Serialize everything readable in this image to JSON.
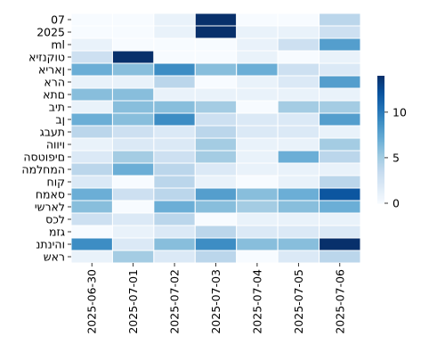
{
  "chart_data": {
    "type": "heatmap",
    "title": "",
    "xlabel": "",
    "ylabel": "",
    "x": [
      "2025-06-30",
      "2025-07-01",
      "2025-07-02",
      "2025-07-03",
      "2025-07-04",
      "2025-07-05",
      "2025-07-06"
    ],
    "y": [
      "07",
      "2025",
      "ml",
      "טוקנזיא",
      "ןאריא",
      "הרא",
      "םתא",
      "תיב",
      "ןב",
      "תעבג",
      "ויווה",
      "םיפוטסה",
      "המחלמה",
      "קוח",
      "סאמח",
      "לארשי",
      "לכס",
      "גזמ",
      "והינתנ",
      "ראש"
    ],
    "values": [
      [
        0,
        0,
        1,
        14,
        0,
        0,
        4
      ],
      [
        0,
        0,
        1,
        14,
        1,
        1,
        3
      ],
      [
        1,
        0,
        0,
        0,
        1,
        3,
        8
      ],
      [
        3,
        14,
        0,
        0,
        1,
        0,
        1
      ],
      [
        7,
        6,
        9,
        6,
        7,
        3,
        2
      ],
      [
        1,
        1,
        4,
        0,
        1,
        2,
        8
      ],
      [
        6,
        6,
        1,
        1,
        1,
        1,
        1
      ],
      [
        1,
        6,
        6,
        5,
        0,
        5,
        5
      ],
      [
        7,
        6,
        9,
        3,
        2,
        2,
        8
      ],
      [
        4,
        3,
        2,
        4,
        2,
        2,
        1
      ],
      [
        1,
        2,
        2,
        5,
        1,
        1,
        5
      ],
      [
        2,
        5,
        3,
        5,
        1,
        7,
        4
      ],
      [
        4,
        7,
        4,
        2,
        1,
        1,
        1
      ],
      [
        2,
        0,
        4,
        1,
        0,
        1,
        4
      ],
      [
        7,
        3,
        4,
        8,
        6,
        7,
        12
      ],
      [
        6,
        0,
        7,
        6,
        5,
        6,
        7
      ],
      [
        3,
        2,
        4,
        0,
        1,
        1,
        1
      ],
      [
        0,
        1,
        2,
        4,
        2,
        2,
        2
      ],
      [
        9,
        2,
        6,
        9,
        6,
        6,
        14
      ],
      [
        1,
        5,
        2,
        4,
        0,
        2,
        4
      ]
    ],
    "colorbar": {
      "min": 0,
      "max": 14,
      "ticks": [
        0,
        5,
        10
      ],
      "colormap": "Blues"
    },
    "grid": false,
    "cell_border_color": "#ffffff"
  }
}
